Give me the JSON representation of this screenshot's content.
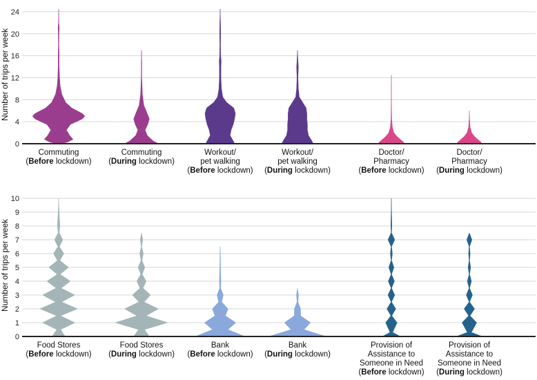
{
  "chart_data": [
    {
      "type": "violin",
      "ylabel": "Number of trips per week",
      "ylim": [
        0,
        24
      ],
      "yticks": [
        0,
        4,
        8,
        12,
        16,
        20,
        24
      ],
      "categories": [
        {
          "lines": [
            [
              "Commuting"
            ],
            [
              "(",
              "Before",
              " lockdown)"
            ]
          ],
          "color": "#9b3d8f",
          "max": 24.5,
          "density": [
            [
              0,
              0.07
            ],
            [
              0.3,
              0.35
            ],
            [
              0.8,
              0.55
            ],
            [
              1.5,
              0.42
            ],
            [
              2.5,
              0.3
            ],
            [
              3.5,
              0.45
            ],
            [
              4.5,
              0.9
            ],
            [
              5,
              1.0
            ],
            [
              5.5,
              0.9
            ],
            [
              6.5,
              0.5
            ],
            [
              7.5,
              0.27
            ],
            [
              9,
              0.12
            ],
            [
              10.5,
              0.06
            ],
            [
              12,
              0.035
            ],
            [
              14,
              0.02
            ],
            [
              16,
              0.02
            ],
            [
              18,
              0.012
            ],
            [
              20,
              0.015
            ],
            [
              21,
              0.025
            ],
            [
              22,
              0.01
            ],
            [
              24.5,
              0
            ]
          ]
        },
        {
          "lines": [
            [
              "Commuting"
            ],
            [
              "(",
              "During",
              " lockdown)"
            ]
          ],
          "color": "#9b3d8f",
          "max": 17,
          "density": [
            [
              0,
              0.65
            ],
            [
              0.5,
              0.45
            ],
            [
              1.5,
              0.22
            ],
            [
              2.5,
              0.14
            ],
            [
              3.5,
              0.24
            ],
            [
              4.5,
              0.3
            ],
            [
              5.5,
              0.22
            ],
            [
              7,
              0.09
            ],
            [
              9,
              0.035
            ],
            [
              12,
              0.012
            ],
            [
              15,
              0.01
            ],
            [
              17,
              0
            ]
          ]
        },
        {
          "lines": [
            [
              "Workout/"
            ],
            [
              "pet walking"
            ],
            [
              "(",
              "Before",
              " lockdown)"
            ]
          ],
          "color": "#5b3a8c",
          "max": 25,
          "density": [
            [
              0,
              0.55
            ],
            [
              0.5,
              0.5
            ],
            [
              1.5,
              0.38
            ],
            [
              2.5,
              0.42
            ],
            [
              3.5,
              0.5
            ],
            [
              4.5,
              0.55
            ],
            [
              5.5,
              0.58
            ],
            [
              6.5,
              0.52
            ],
            [
              7.5,
              0.25
            ],
            [
              8.5,
              0.1
            ],
            [
              10,
              0.05
            ],
            [
              12,
              0.03
            ],
            [
              14,
              0.03
            ],
            [
              15,
              0.04
            ],
            [
              16,
              0.02
            ],
            [
              18,
              0.015
            ],
            [
              20,
              0.02
            ],
            [
              22,
              0.015
            ],
            [
              25,
              0
            ]
          ]
        },
        {
          "lines": [
            [
              "Workout/"
            ],
            [
              "pet walking"
            ],
            [
              "(",
              "During",
              " lockdown)"
            ]
          ],
          "color": "#5b3a8c",
          "max": 17,
          "density": [
            [
              0,
              0.6
            ],
            [
              0.5,
              0.55
            ],
            [
              1.5,
              0.42
            ],
            [
              2.5,
              0.38
            ],
            [
              3.5,
              0.38
            ],
            [
              4.5,
              0.36
            ],
            [
              5.5,
              0.36
            ],
            [
              6.5,
              0.33
            ],
            [
              7.5,
              0.2
            ],
            [
              8.5,
              0.07
            ],
            [
              10,
              0.035
            ],
            [
              12,
              0.02
            ],
            [
              14,
              0.035
            ],
            [
              15,
              0.02
            ],
            [
              17,
              0
            ]
          ]
        },
        {
          "lines": [
            [
              "Doctor/"
            ],
            [
              "Pharmacy"
            ],
            [
              "(",
              "Before",
              " lockdown)"
            ]
          ],
          "color": "#d9478a",
          "max": 12.5,
          "density": [
            [
              0,
              0.5
            ],
            [
              0.3,
              0.46
            ],
            [
              0.8,
              0.34
            ],
            [
              1.3,
              0.22
            ],
            [
              2,
              0.1
            ],
            [
              3,
              0.04
            ],
            [
              4.5,
              0.015
            ],
            [
              7,
              0.008
            ],
            [
              10,
              0.005
            ],
            [
              12.5,
              0
            ]
          ]
        },
        {
          "lines": [
            [
              "Doctor/"
            ],
            [
              "Pharmacy"
            ],
            [
              "(",
              "During",
              " lockdown)"
            ]
          ],
          "color": "#d9478a",
          "max": 6,
          "density": [
            [
              0,
              0.48
            ],
            [
              0.3,
              0.44
            ],
            [
              0.8,
              0.32
            ],
            [
              1.3,
              0.2
            ],
            [
              2,
              0.09
            ],
            [
              3,
              0.03
            ],
            [
              4.5,
              0.01
            ],
            [
              6,
              0
            ]
          ]
        }
      ]
    },
    {
      "type": "violin",
      "ylabel": "Number of trips per week",
      "ylim": [
        0,
        10
      ],
      "yticks": [
        0,
        1,
        2,
        3,
        4,
        5,
        6,
        7,
        8,
        9,
        10
      ],
      "categories": [
        {
          "lines": [
            [
              "Food Stores"
            ],
            [
              "(",
              "Before",
              " lockdown)"
            ]
          ],
          "color": "#a4b5b7",
          "max": 10,
          "density": [
            [
              0,
              0.25
            ],
            [
              0.5,
              0.08
            ],
            [
              1,
              0.62
            ],
            [
              1.5,
              0.08
            ],
            [
              2,
              0.72
            ],
            [
              2.5,
              0.12
            ],
            [
              3,
              0.62
            ],
            [
              3.5,
              0.1
            ],
            [
              4,
              0.45
            ],
            [
              4.5,
              0.06
            ],
            [
              5,
              0.38
            ],
            [
              5.5,
              0.05
            ],
            [
              6,
              0.2
            ],
            [
              6.5,
              0.03
            ],
            [
              7,
              0.16
            ],
            [
              7.5,
              0.02
            ],
            [
              8,
              0.05
            ],
            [
              9,
              0.02
            ],
            [
              10,
              0
            ]
          ]
        },
        {
          "lines": [
            [
              "Food Stores"
            ],
            [
              "(",
              "During",
              " lockdown)"
            ]
          ],
          "color": "#a4b5b7",
          "max": 7.5,
          "density": [
            [
              0,
              0.3
            ],
            [
              0.5,
              0.12
            ],
            [
              1,
              1.0
            ],
            [
              1.5,
              0.18
            ],
            [
              2,
              0.65
            ],
            [
              2.5,
              0.1
            ],
            [
              3,
              0.35
            ],
            [
              3.5,
              0.06
            ],
            [
              4,
              0.18
            ],
            [
              4.5,
              0.03
            ],
            [
              5,
              0.13
            ],
            [
              5.5,
              0.02
            ],
            [
              6,
              0.07
            ],
            [
              6.5,
              0.01
            ],
            [
              7,
              0.05
            ],
            [
              7.5,
              0
            ]
          ]
        },
        {
          "lines": [
            [
              "Bank"
            ],
            [
              "(",
              "Before",
              " lockdown)"
            ]
          ],
          "color": "#8aa8dc",
          "max": 6.5,
          "density": [
            [
              0,
              0.95
            ],
            [
              0.5,
              0.3
            ],
            [
              1,
              0.6
            ],
            [
              1.5,
              0.2
            ],
            [
              2,
              0.3
            ],
            [
              2.5,
              0.06
            ],
            [
              3,
              0.12
            ],
            [
              3.5,
              0.02
            ],
            [
              4,
              0.03
            ],
            [
              5,
              0.015
            ],
            [
              6,
              0.01
            ],
            [
              6.5,
              0
            ]
          ]
        },
        {
          "lines": [
            [
              "Bank"
            ],
            [
              "(",
              "During",
              " lockdown)"
            ]
          ],
          "color": "#8aa8dc",
          "max": 3.5,
          "density": [
            [
              0,
              1.1
            ],
            [
              0.5,
              0.25
            ],
            [
              1,
              0.5
            ],
            [
              1.5,
              0.12
            ],
            [
              2,
              0.12
            ],
            [
              2.5,
              0.02
            ],
            [
              3,
              0.04
            ],
            [
              3.5,
              0
            ]
          ]
        },
        {
          "lines": [
            [
              "Provision of"
            ],
            [
              "Assistance to"
            ],
            [
              "Someone in Need"
            ],
            [
              "(",
              "Before",
              " lockdown)"
            ]
          ],
          "color": "#25628c",
          "max": 10,
          "density": [
            [
              0,
              0.35
            ],
            [
              0.3,
              0.05
            ],
            [
              1,
              0.22
            ],
            [
              1.5,
              0.02
            ],
            [
              2,
              0.17
            ],
            [
              2.5,
              0.01
            ],
            [
              3,
              0.13
            ],
            [
              3.5,
              0.01
            ],
            [
              4,
              0.12
            ],
            [
              4.5,
              0.01
            ],
            [
              5,
              0.1
            ],
            [
              5.5,
              0.01
            ],
            [
              6,
              0.04
            ],
            [
              6.5,
              0.01
            ],
            [
              7,
              0.13
            ],
            [
              7.5,
              0.01
            ],
            [
              8,
              0.02
            ],
            [
              9,
              0.01
            ],
            [
              10,
              0
            ]
          ]
        },
        {
          "lines": [
            [
              "Provision of"
            ],
            [
              "Assistance to"
            ],
            [
              "Someone in Need"
            ],
            [
              "(",
              "During",
              " lockdown)"
            ]
          ],
          "color": "#25628c",
          "max": 7.5,
          "density": [
            [
              0,
              0.5
            ],
            [
              0.3,
              0.08
            ],
            [
              1,
              0.28
            ],
            [
              1.5,
              0.03
            ],
            [
              2,
              0.2
            ],
            [
              2.5,
              0.01
            ],
            [
              3,
              0.12
            ],
            [
              3.5,
              0.01
            ],
            [
              4,
              0.08
            ],
            [
              4.5,
              0.01
            ],
            [
              5,
              0.05
            ],
            [
              5.5,
              0.01
            ],
            [
              6,
              0.03
            ],
            [
              6.5,
              0.01
            ],
            [
              7,
              0.1
            ],
            [
              7.5,
              0
            ]
          ]
        }
      ]
    }
  ]
}
